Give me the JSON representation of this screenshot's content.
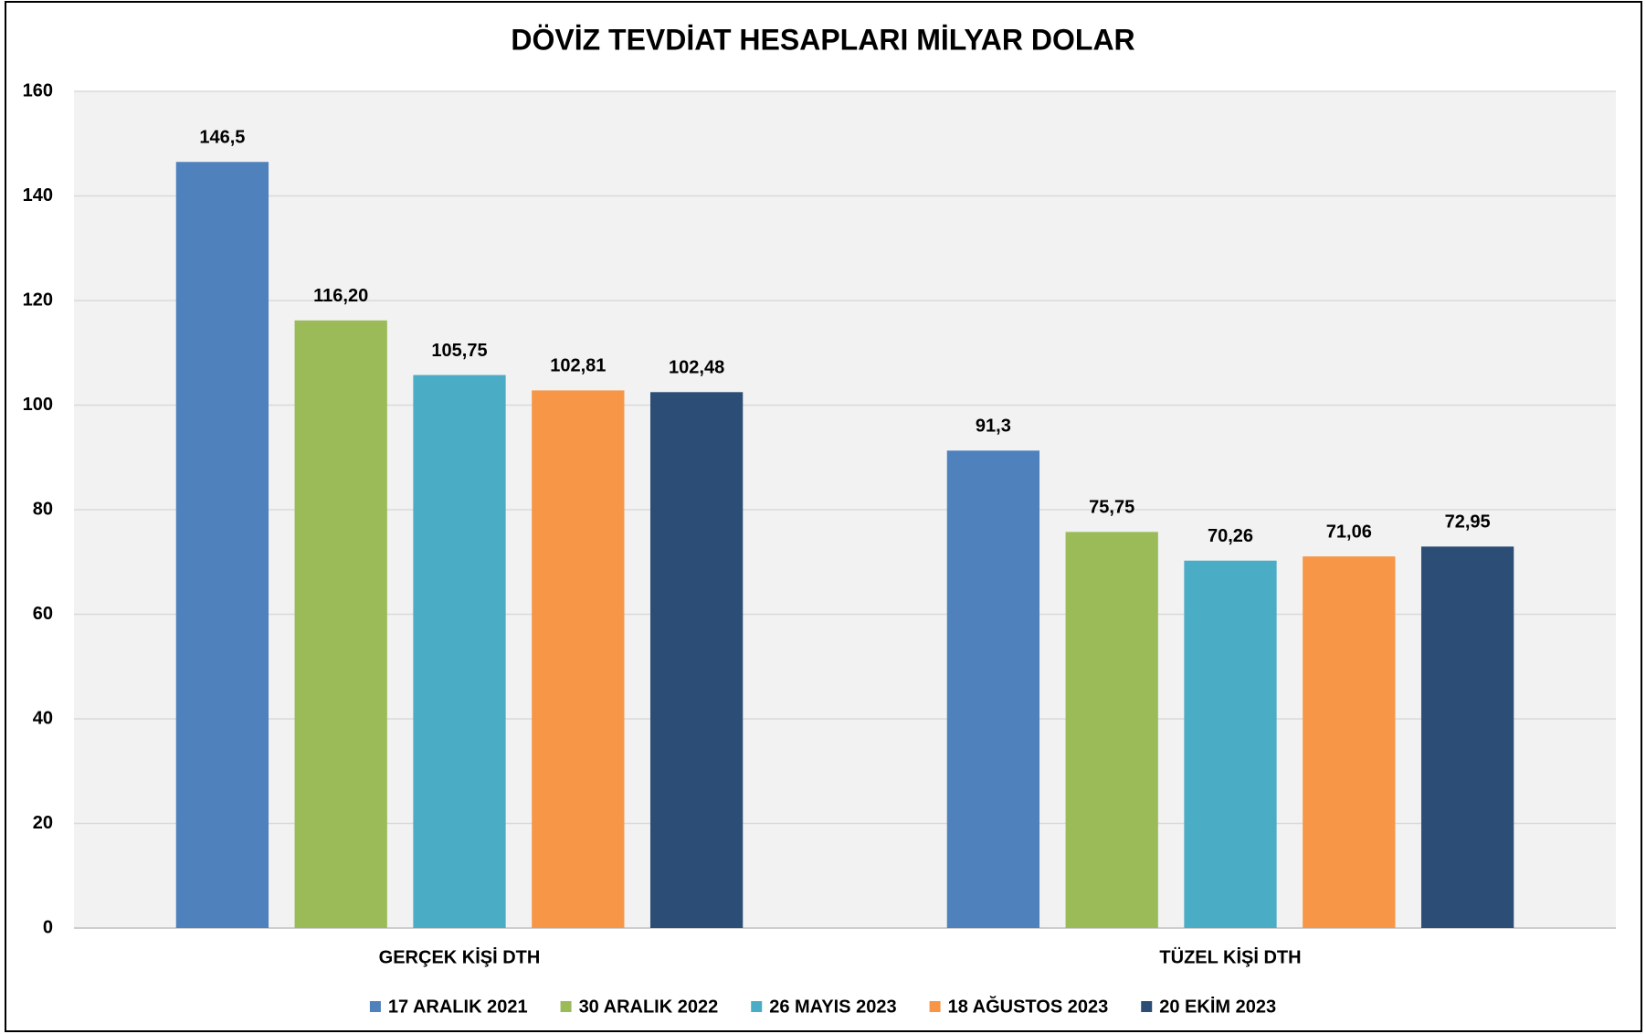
{
  "chart_data": {
    "type": "bar",
    "title": "DÖVİZ TEVDİAT HESAPLARI MİLYAR DOLAR",
    "categories": [
      "GERÇEK KİŞİ DTH",
      "TÜZEL KİŞİ DTH"
    ],
    "series": [
      {
        "name": "17 ARALIK 2021",
        "color": "#4f81bd",
        "values": [
          146.5,
          91.3
        ],
        "value_labels": [
          "146,5",
          "91,3"
        ]
      },
      {
        "name": "30 ARALIK 2022",
        "color": "#9bbb59",
        "values": [
          116.2,
          75.75
        ],
        "value_labels": [
          "116,20",
          "75,75"
        ]
      },
      {
        "name": "26 MAYIS 2023",
        "color": "#4bacc6",
        "values": [
          105.75,
          70.26
        ],
        "value_labels": [
          "105,75",
          "70,26"
        ]
      },
      {
        "name": "18 AĞUSTOS 2023",
        "color": "#f79646",
        "values": [
          102.81,
          71.06
        ],
        "value_labels": [
          "102,81",
          "71,06"
        ]
      },
      {
        "name": "20 EKİM 2023",
        "color": "#2c4d75",
        "values": [
          102.48,
          72.95
        ],
        "value_labels": [
          "102,48",
          "72,95"
        ]
      }
    ],
    "ylim": [
      0,
      160
    ],
    "yticks": [
      0,
      20,
      40,
      60,
      80,
      100,
      120,
      140,
      160
    ],
    "grid": true,
    "legend": "bottom"
  }
}
